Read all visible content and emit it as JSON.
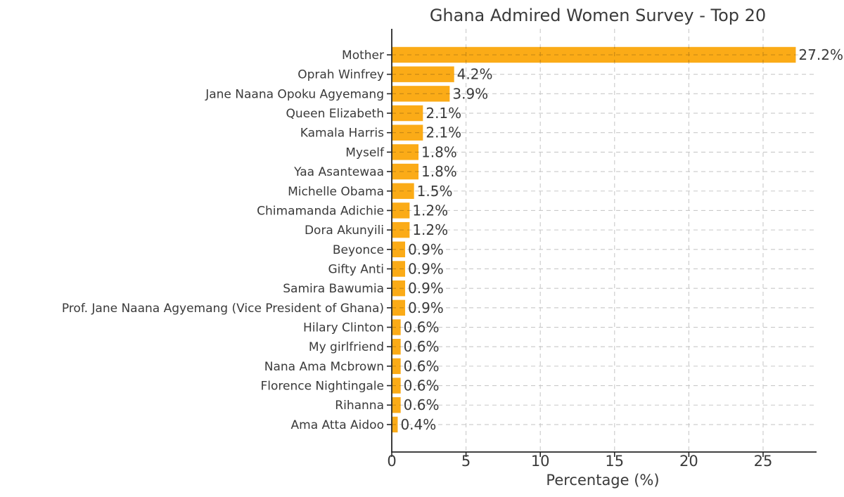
{
  "chart_data": {
    "type": "bar",
    "orientation": "horizontal",
    "title": "Ghana Admired Women Survey - Top 20",
    "xlabel": "Percentage (%)",
    "ylabel": "",
    "categories": [
      "Mother",
      "Oprah Winfrey",
      "Jane Naana Opoku Agyemang",
      "Queen Elizabeth",
      "Kamala Harris",
      "Myself",
      "Yaa Asantewaa",
      "Michelle Obama",
      "Chimamanda Adichie",
      "Dora Akunyili",
      "Beyonce",
      "Gifty Anti",
      "Samira Bawumia",
      "Prof. Jane Naana Agyemang (Vice President of Ghana)",
      "Hilary Clinton",
      "My girlfriend",
      "Nana Ama Mcbrown",
      "Florence Nightingale",
      "Rihanna",
      "Ama Atta Aidoo"
    ],
    "values": [
      27.2,
      4.2,
      3.9,
      2.1,
      2.1,
      1.8,
      1.8,
      1.5,
      1.2,
      1.2,
      0.9,
      0.9,
      0.9,
      0.9,
      0.6,
      0.6,
      0.6,
      0.6,
      0.6,
      0.4
    ],
    "value_labels": [
      "27.2%",
      "4.2%",
      "3.9%",
      "2.1%",
      "2.1%",
      "1.8%",
      "1.8%",
      "1.5%",
      "1.2%",
      "1.2%",
      "0.9%",
      "0.9%",
      "0.9%",
      "0.9%",
      "0.6%",
      "0.6%",
      "0.6%",
      "0.6%",
      "0.6%",
      "0.4%"
    ],
    "x_ticks": [
      0,
      5,
      10,
      15,
      20,
      25
    ],
    "xlim": [
      0,
      28.6
    ],
    "grid": "dashed, both axes, drawn over bars",
    "legend": "none",
    "bar_color": "#fbab17",
    "text_color": "#3a3a3a",
    "grid_color": "#c9c9c9",
    "axis_color": "#262626"
  }
}
